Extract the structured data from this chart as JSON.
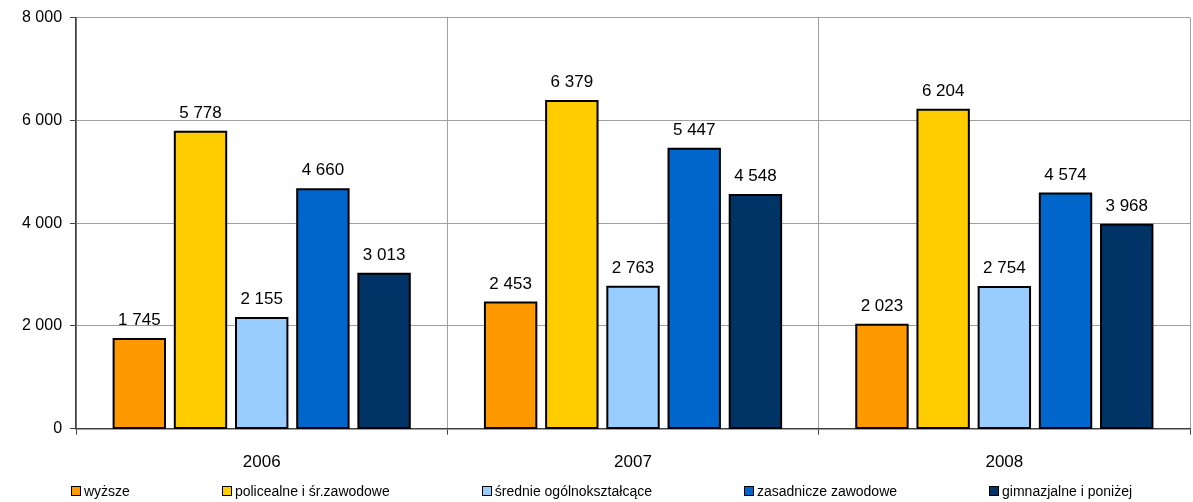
{
  "chart_data": {
    "type": "bar",
    "categories": [
      "2006",
      "2007",
      "2008"
    ],
    "series": [
      {
        "name": "wyższe",
        "color": "#ff9900",
        "values": [
          1745,
          2453,
          2023
        ],
        "value_labels": [
          "1 745",
          "2 453",
          "2 023"
        ]
      },
      {
        "name": "policealne i śr.zawodowe",
        "color": "#ffcc00",
        "values": [
          5778,
          6379,
          6204
        ],
        "value_labels": [
          "5 778",
          "6 379",
          "6 204"
        ]
      },
      {
        "name": "średnie ogólnokształcące",
        "color": "#99ccff",
        "values": [
          2155,
          2763,
          2754
        ],
        "value_labels": [
          "2 155",
          "2 763",
          "2 754"
        ]
      },
      {
        "name": "zasadnicze zawodowe",
        "color": "#0066cc",
        "values": [
          4660,
          5447,
          4574
        ],
        "value_labels": [
          "4 660",
          "5 447",
          "4 574"
        ]
      },
      {
        "name": "gimnazjalne i poniżej",
        "color": "#003366",
        "values": [
          3013,
          4548,
          3968
        ],
        "value_labels": [
          "3 013",
          "4 548",
          "3 968"
        ]
      }
    ],
    "ylim": [
      0,
      8000
    ],
    "yticks": [
      0,
      {
        "value": 2000,
        "label": "2 000"
      },
      {
        "value": 4000,
        "label": "4 000"
      },
      {
        "value": 6000,
        "label": "6 000"
      },
      {
        "value": 8000,
        "label": "8 000"
      }
    ],
    "grid": true,
    "legend": "bottom"
  }
}
